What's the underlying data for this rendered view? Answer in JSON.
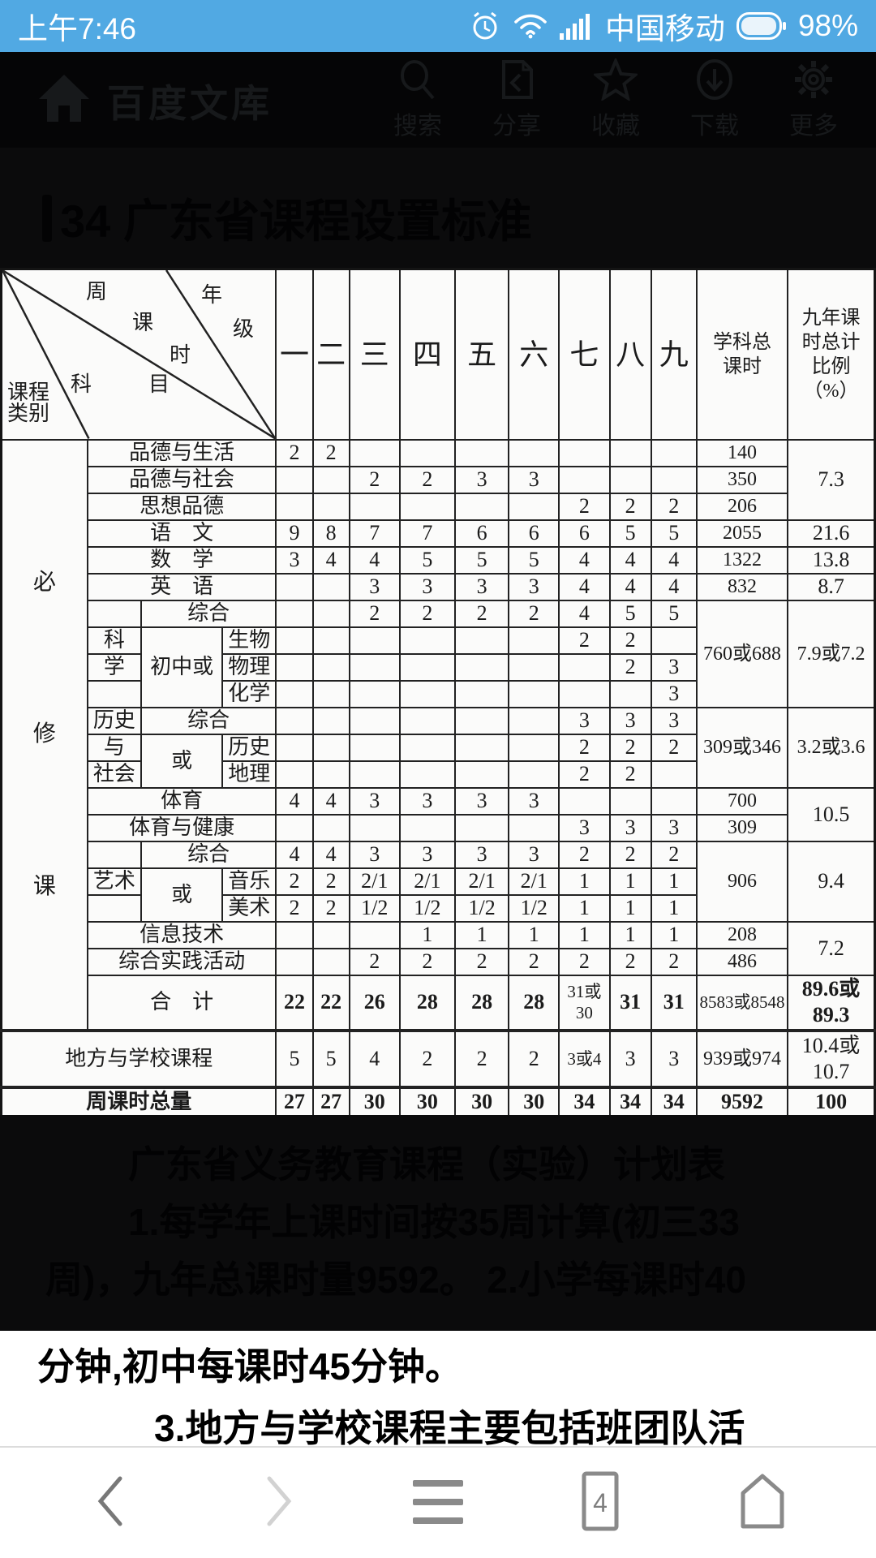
{
  "status_bar": {
    "time": "上午7:46",
    "carrier": "中国移动",
    "battery": "98%",
    "icons": [
      "alarm-icon",
      "wifi-icon",
      "signal-icon",
      "battery-icon"
    ]
  },
  "app_header": {
    "title": "百度文库",
    "actions": [
      {
        "id": "search",
        "label": "搜索"
      },
      {
        "id": "share",
        "label": "分享"
      },
      {
        "id": "favorite",
        "label": "收藏"
      },
      {
        "id": "download",
        "label": "下载"
      },
      {
        "id": "more",
        "label": "更多"
      }
    ]
  },
  "document": {
    "title": "34 广东省课程设置标准"
  },
  "table": {
    "corner": {
      "week": "周课时",
      "grade": "年级",
      "subject": "科　目",
      "category": "课程类别"
    },
    "grade_headers": [
      "一",
      "二",
      "三",
      "四",
      "五",
      "六",
      "七",
      "八",
      "九"
    ],
    "total_header": "学科总课时",
    "pct_header": "九年课时总计比例（%）",
    "rows": [
      {
        "cells": [
          {
            "t": "必修课",
            "rs": 21,
            "c": "vert",
            "n": "category-required-courses"
          },
          {
            "t": "品德与生活",
            "cs": 3,
            "c": "subj",
            "n": "subject-cell"
          },
          "2",
          "2",
          "",
          "",
          "",
          "",
          "",
          "",
          "",
          {
            "t": "140",
            "c": "md",
            "n": "total-hours-cell"
          },
          {
            "t": "7.3",
            "rs": 3,
            "n": "percent-cell"
          }
        ]
      },
      {
        "cells": [
          {
            "t": "品德与社会",
            "cs": 3,
            "c": "subj",
            "n": "subject-cell"
          },
          "",
          "",
          "2",
          "2",
          "3",
          "3",
          "",
          "",
          "",
          {
            "t": "350",
            "c": "md",
            "n": "total-hours-cell"
          }
        ]
      },
      {
        "cells": [
          {
            "t": "思想品德",
            "cs": 3,
            "c": "subj",
            "n": "subject-cell"
          },
          "",
          "",
          "",
          "",
          "",
          "",
          "2",
          "2",
          "2",
          {
            "t": "206",
            "c": "md",
            "n": "total-hours-cell"
          }
        ]
      },
      {
        "cells": [
          {
            "t": "语　文",
            "cs": 3,
            "c": "subj",
            "n": "subject-cell"
          },
          "9",
          "8",
          "7",
          "7",
          "6",
          "6",
          "6",
          "5",
          "5",
          {
            "t": "2055",
            "c": "md",
            "n": "total-hours-cell"
          },
          {
            "t": "21.6",
            "n": "percent-cell"
          }
        ]
      },
      {
        "cells": [
          {
            "t": "数　学",
            "cs": 3,
            "c": "subj",
            "n": "subject-cell"
          },
          "3",
          "4",
          "4",
          "5",
          "5",
          "5",
          "4",
          "4",
          "4",
          {
            "t": "1322",
            "c": "md",
            "n": "total-hours-cell"
          },
          {
            "t": "13.8",
            "n": "percent-cell"
          }
        ]
      },
      {
        "cells": [
          {
            "t": "英　语",
            "cs": 3,
            "c": "subj",
            "n": "subject-cell"
          },
          "",
          "",
          "3",
          "3",
          "3",
          "3",
          "4",
          "4",
          "4",
          {
            "t": "832",
            "c": "md",
            "n": "total-hours-cell"
          },
          {
            "t": "8.7",
            "n": "percent-cell"
          }
        ]
      },
      {
        "cells": [
          {
            "t": "",
            "n": "subject-cell"
          },
          {
            "t": "综合",
            "cs": 2,
            "c": "subj",
            "n": "subject-cell"
          },
          "",
          "",
          "2",
          "2",
          "2",
          "2",
          "4",
          "5",
          "5",
          {
            "t": "760或688",
            "rs": 4,
            "c": "md",
            "n": "total-hours-cell"
          },
          {
            "t": "7.9或7.2",
            "rs": 4,
            "c": "md",
            "n": "percent-cell"
          }
        ]
      },
      {
        "cells": [
          {
            "t": "科",
            "c": "subj",
            "n": "subject-cell"
          },
          {
            "t": "初中或",
            "rs": 3,
            "c": "subj",
            "n": "subject-cell"
          },
          {
            "t": "生物",
            "c": "subj",
            "n": "subject-cell"
          },
          "",
          "",
          "",
          "",
          "",
          "",
          "2",
          "2",
          ""
        ]
      },
      {
        "cells": [
          {
            "t": "学",
            "c": "subj",
            "n": "subject-cell"
          },
          {
            "t": "物理",
            "c": "subj",
            "n": "subject-cell"
          },
          "",
          "",
          "",
          "",
          "",
          "",
          "",
          "2",
          "3"
        ]
      },
      {
        "cells": [
          {
            "t": "",
            "n": "subject-cell"
          },
          {
            "t": "化学",
            "c": "subj",
            "n": "subject-cell"
          },
          "",
          "",
          "",
          "",
          "",
          "",
          "",
          "",
          "3"
        ]
      },
      {
        "cells": [
          {
            "t": "历史",
            "c": "subj",
            "n": "subject-cell"
          },
          {
            "t": "综合",
            "cs": 2,
            "c": "subj",
            "n": "subject-cell"
          },
          "",
          "",
          "",
          "",
          "",
          "",
          "3",
          "3",
          "3",
          {
            "t": "309或346",
            "rs": 3,
            "c": "md",
            "n": "total-hours-cell"
          },
          {
            "t": "3.2或3.6",
            "rs": 3,
            "c": "md",
            "n": "percent-cell"
          }
        ]
      },
      {
        "cells": [
          {
            "t": "与",
            "c": "subj",
            "n": "subject-cell"
          },
          {
            "t": "或",
            "rs": 2,
            "c": "subj",
            "n": "subject-cell"
          },
          {
            "t": "历史",
            "c": "subj",
            "n": "subject-cell"
          },
          "",
          "",
          "",
          "",
          "",
          "",
          "2",
          "2",
          "2"
        ]
      },
      {
        "cells": [
          {
            "t": "社会",
            "c": "subj",
            "n": "subject-cell"
          },
          {
            "t": "地理",
            "c": "subj",
            "n": "subject-cell"
          },
          "",
          "",
          "",
          "",
          "",
          "",
          "2",
          "2",
          ""
        ]
      },
      {
        "cells": [
          {
            "t": "体育",
            "cs": 3,
            "c": "subj",
            "n": "subject-cell"
          },
          "4",
          "4",
          "3",
          "3",
          "3",
          "3",
          "",
          "",
          "",
          {
            "t": "700",
            "c": "md",
            "n": "total-hours-cell"
          },
          {
            "t": "10.5",
            "rs": 2,
            "n": "percent-cell"
          }
        ]
      },
      {
        "cells": [
          {
            "t": "体育与健康",
            "cs": 3,
            "c": "subj",
            "n": "subject-cell"
          },
          "",
          "",
          "",
          "",
          "",
          "",
          "3",
          "3",
          "3",
          {
            "t": "309",
            "c": "md",
            "n": "total-hours-cell"
          }
        ]
      },
      {
        "cells": [
          {
            "t": "",
            "n": "subject-cell"
          },
          {
            "t": "综合",
            "cs": 2,
            "c": "subj",
            "n": "subject-cell"
          },
          "4",
          "4",
          "3",
          "3",
          "3",
          "3",
          "2",
          "2",
          "2",
          {
            "t": "906",
            "rs": 3,
            "c": "md",
            "n": "total-hours-cell"
          },
          {
            "t": "9.4",
            "rs": 3,
            "n": "percent-cell"
          }
        ]
      },
      {
        "cells": [
          {
            "t": "艺术",
            "c": "subj",
            "n": "subject-cell"
          },
          {
            "t": "或",
            "rs": 2,
            "c": "subj",
            "n": "subject-cell"
          },
          {
            "t": "音乐",
            "c": "subj",
            "n": "subject-cell"
          },
          "2",
          "2",
          "2/1",
          "2/1",
          "2/1",
          "2/1",
          "1",
          "1",
          "1"
        ]
      },
      {
        "cells": [
          {
            "t": "",
            "n": "subject-cell"
          },
          {
            "t": "美术",
            "c": "subj",
            "n": "subject-cell"
          },
          "2",
          "2",
          "1/2",
          "1/2",
          "1/2",
          "1/2",
          "1",
          "1",
          "1"
        ]
      },
      {
        "cells": [
          {
            "t": "信息技术",
            "cs": 3,
            "c": "subj",
            "n": "subject-cell"
          },
          "",
          "",
          "",
          "1",
          "1",
          "1",
          "1",
          "1",
          "1",
          {
            "t": "208",
            "c": "md",
            "n": "total-hours-cell"
          },
          {
            "t": "7.2",
            "rs": 2,
            "n": "percent-cell"
          }
        ]
      },
      {
        "cells": [
          {
            "t": "综合实践活动",
            "cs": 3,
            "c": "subj",
            "n": "subject-cell"
          },
          "",
          "",
          "2",
          "2",
          "2",
          "2",
          "2",
          "2",
          "2",
          {
            "t": "486",
            "c": "md",
            "n": "total-hours-cell"
          }
        ]
      },
      {
        "c": "r-sum",
        "cells": [
          {
            "t": "合　计",
            "cs": 3,
            "c": "subj",
            "n": "subject-cell"
          },
          {
            "t": "22",
            "c": "b"
          },
          {
            "t": "22",
            "c": "b"
          },
          {
            "t": "26",
            "c": "b"
          },
          {
            "t": "28",
            "c": "b"
          },
          {
            "t": "28",
            "c": "b"
          },
          {
            "t": "28",
            "c": "b"
          },
          {
            "t": "31或30",
            "c": "sm"
          },
          {
            "t": "31",
            "c": "b"
          },
          {
            "t": "31",
            "c": "b"
          },
          {
            "t": "8583或8548",
            "c": "sm",
            "n": "total-hours-cell"
          },
          {
            "t": "89.6或89.3",
            "c": "b pct2",
            "n": "percent-cell"
          }
        ]
      },
      {
        "c": "r-local sep",
        "cells": [
          {
            "t": "地方与学校课程",
            "cs": 4,
            "c": "subj",
            "n": "subject-cell"
          },
          "5",
          "5",
          "4",
          "2",
          "2",
          "2",
          {
            "t": "3或4",
            "c": "sm"
          },
          "3",
          "3",
          {
            "t": "939或974",
            "c": "md",
            "n": "total-hours-cell"
          },
          {
            "t": "10.4或10.7",
            "c": "md pct2",
            "n": "percent-cell"
          }
        ]
      },
      {
        "c": "r-week sep",
        "cells": [
          {
            "t": "周课时总量",
            "cs": 4,
            "c": "subj b",
            "n": "subject-cell"
          },
          {
            "t": "27",
            "c": "b"
          },
          {
            "t": "27",
            "c": "b"
          },
          {
            "t": "30",
            "c": "b"
          },
          {
            "t": "30",
            "c": "b"
          },
          {
            "t": "30",
            "c": "b"
          },
          {
            "t": "30",
            "c": "b"
          },
          {
            "t": "34",
            "c": "b"
          },
          {
            "t": "34",
            "c": "b"
          },
          {
            "t": "34",
            "c": "b"
          },
          {
            "t": "9592",
            "c": "b",
            "n": "total-hours-cell"
          },
          {
            "t": "100",
            "c": "b",
            "n": "percent-cell"
          }
        ]
      }
    ]
  },
  "dark_notes": {
    "line1": "广东省义务教育课程（实验）计划表",
    "line2": "1.每学年上课时间按35周计算(初三33",
    "line3": "周)，九年总课时量9592。 2.小学每课时40"
  },
  "light_notes": {
    "line1": "分钟,初中每课时45分钟。",
    "line2": "3.地方与学校课程主要包括班团队活"
  },
  "nav_bar": {
    "tab_count": "4",
    "items": [
      {
        "id": "back",
        "icon": "back-icon"
      },
      {
        "id": "forward",
        "icon": "forward-icon"
      },
      {
        "id": "menu",
        "icon": "menu-icon"
      },
      {
        "id": "tabs",
        "icon": "tabs-icon"
      },
      {
        "id": "home",
        "icon": "home-nav-icon"
      }
    ]
  }
}
